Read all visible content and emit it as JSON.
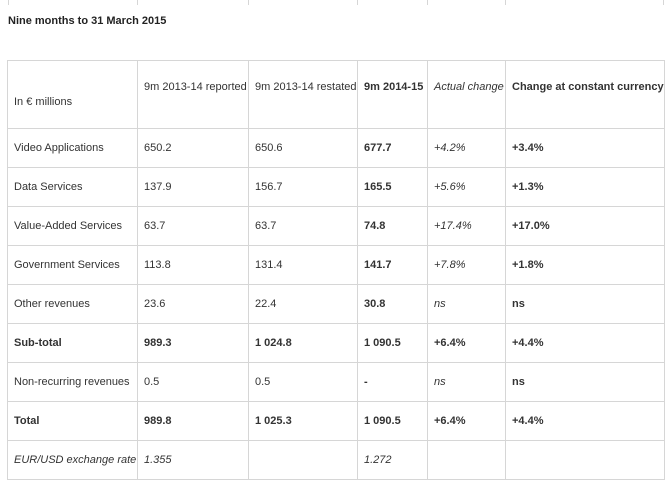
{
  "title": "Nine months to 31 March 2015",
  "columns": [
    "In € millions",
    "9m 2013-14 reported",
    "9m 2013-14 restated",
    "9m 2014-15",
    "Actual change",
    "Change at constant currency"
  ],
  "rows": [
    {
      "label": "Video Applications",
      "cells": [
        "650.2",
        "650.6",
        "677.7",
        "+4.2%",
        "+3.4%"
      ]
    },
    {
      "label": "Data Services",
      "cells": [
        "137.9",
        "156.7",
        "165.5",
        "+5.6%",
        "+1.3%"
      ]
    },
    {
      "label": "Value-Added Services",
      "cells": [
        "63.7",
        "63.7",
        "74.8",
        "+17.4%",
        "+17.0%"
      ]
    },
    {
      "label": "Government Services",
      "cells": [
        "113.8",
        "131.4",
        "141.7",
        "+7.8%",
        "+1.8%"
      ]
    },
    {
      "label": "Other revenues",
      "cells": [
        "23.6",
        "22.4",
        "30.8",
        "ns",
        "ns"
      ]
    },
    {
      "label": "Sub-total",
      "cells": [
        "989.3",
        "1 024.8",
        "1 090.5",
        "+6.4%",
        "+4.4%"
      ]
    },
    {
      "label": "Non-recurring revenues",
      "cells": [
        "0.5",
        "0.5",
        "-",
        "ns",
        "ns"
      ]
    },
    {
      "label": "Total",
      "cells": [
        "989.8",
        "1 025.3",
        "1 090.5",
        "+6.4%",
        "+4.4%"
      ]
    },
    {
      "label": "EUR/USD exchange rate",
      "cells": [
        "1.355",
        "",
        "1.272",
        "",
        ""
      ]
    }
  ]
}
